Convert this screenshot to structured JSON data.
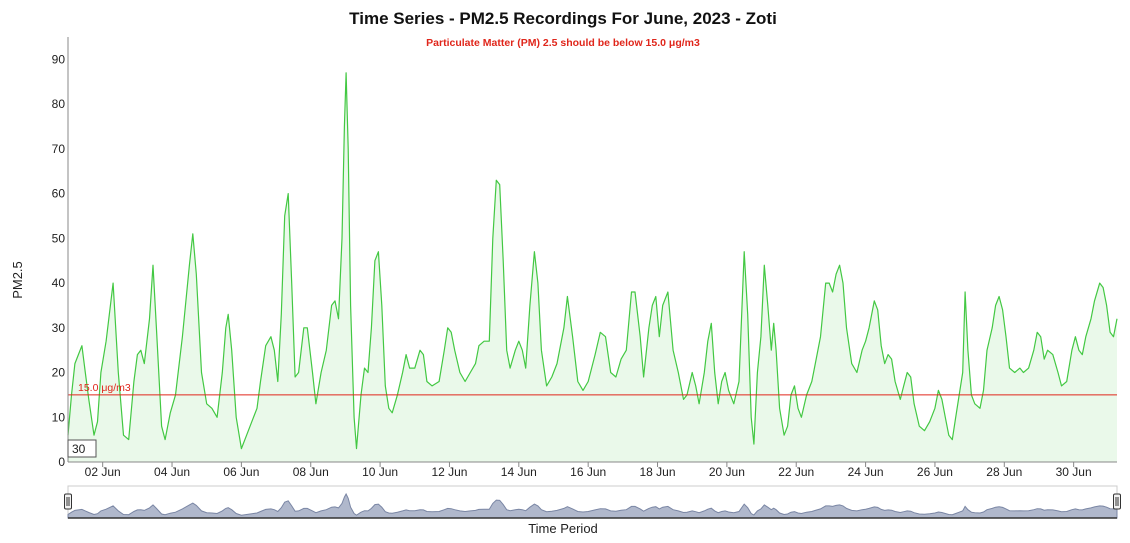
{
  "chart_data": {
    "type": "area",
    "title": "Time Series - PM2.5 Recordings For June, 2023 - Zoti",
    "subtitle": "Particulate Matter (PM) 2.5 should be below 15.0 μg/m3",
    "xlabel": "Time Period",
    "ylabel": "PM2.5",
    "xlim": [
      1.0,
      31.25
    ],
    "ylim": [
      0,
      95
    ],
    "x_ticks": [
      {
        "x": 2,
        "label": "02 Jun"
      },
      {
        "x": 4,
        "label": "04 Jun"
      },
      {
        "x": 6,
        "label": "06 Jun"
      },
      {
        "x": 8,
        "label": "08 Jun"
      },
      {
        "x": 10,
        "label": "10 Jun"
      },
      {
        "x": 12,
        "label": "12 Jun"
      },
      {
        "x": 14,
        "label": "14 Jun"
      },
      {
        "x": 16,
        "label": "16 Jun"
      },
      {
        "x": 18,
        "label": "18 Jun"
      },
      {
        "x": 20,
        "label": "20 Jun"
      },
      {
        "x": 22,
        "label": "22 Jun"
      },
      {
        "x": 24,
        "label": "24 Jun"
      },
      {
        "x": 26,
        "label": "26 Jun"
      },
      {
        "x": 28,
        "label": "28 Jun"
      },
      {
        "x": 30,
        "label": "30 Jun"
      }
    ],
    "y_ticks": [
      0,
      10,
      20,
      30,
      40,
      50,
      60,
      70,
      80,
      90
    ],
    "threshold": {
      "value": 15.0,
      "label": "15.0 μg/m3"
    },
    "grid": false,
    "series": [
      {
        "values": [
          [
            1.0,
            6
          ],
          [
            1.1,
            15
          ],
          [
            1.2,
            22
          ],
          [
            1.3,
            24
          ],
          [
            1.4,
            26
          ],
          [
            1.5,
            20
          ],
          [
            1.6,
            14
          ],
          [
            1.75,
            6
          ],
          [
            1.85,
            9
          ],
          [
            1.95,
            20
          ],
          [
            2.1,
            27
          ],
          [
            2.3,
            40
          ],
          [
            2.45,
            20
          ],
          [
            2.6,
            6
          ],
          [
            2.75,
            5
          ],
          [
            2.9,
            18
          ],
          [
            3.0,
            24
          ],
          [
            3.1,
            25
          ],
          [
            3.2,
            22
          ],
          [
            3.35,
            32
          ],
          [
            3.45,
            44
          ],
          [
            3.55,
            30
          ],
          [
            3.7,
            8
          ],
          [
            3.8,
            5
          ],
          [
            3.95,
            11
          ],
          [
            4.1,
            15
          ],
          [
            4.3,
            28
          ],
          [
            4.5,
            44
          ],
          [
            4.6,
            51
          ],
          [
            4.7,
            42
          ],
          [
            4.85,
            20
          ],
          [
            5.0,
            13
          ],
          [
            5.15,
            12
          ],
          [
            5.3,
            10
          ],
          [
            5.45,
            20
          ],
          [
            5.55,
            30
          ],
          [
            5.62,
            33
          ],
          [
            5.72,
            25
          ],
          [
            5.85,
            10
          ],
          [
            6.0,
            3
          ],
          [
            6.15,
            6
          ],
          [
            6.3,
            9
          ],
          [
            6.45,
            12
          ],
          [
            6.55,
            18
          ],
          [
            6.7,
            26
          ],
          [
            6.85,
            28
          ],
          [
            6.95,
            25
          ],
          [
            7.05,
            18
          ],
          [
            7.15,
            33
          ],
          [
            7.25,
            55
          ],
          [
            7.35,
            60
          ],
          [
            7.45,
            40
          ],
          [
            7.55,
            19
          ],
          [
            7.65,
            20
          ],
          [
            7.8,
            30
          ],
          [
            7.9,
            30
          ],
          [
            8.05,
            20
          ],
          [
            8.15,
            13
          ],
          [
            8.3,
            20
          ],
          [
            8.45,
            25
          ],
          [
            8.6,
            35
          ],
          [
            8.7,
            36
          ],
          [
            8.8,
            32
          ],
          [
            8.9,
            50
          ],
          [
            8.97,
            75
          ],
          [
            9.02,
            87
          ],
          [
            9.08,
            70
          ],
          [
            9.15,
            35
          ],
          [
            9.25,
            10
          ],
          [
            9.32,
            3
          ],
          [
            9.45,
            15
          ],
          [
            9.55,
            21
          ],
          [
            9.65,
            20
          ],
          [
            9.75,
            30
          ],
          [
            9.85,
            45
          ],
          [
            9.95,
            47
          ],
          [
            10.05,
            35
          ],
          [
            10.15,
            17
          ],
          [
            10.25,
            12
          ],
          [
            10.35,
            11
          ],
          [
            10.5,
            15
          ],
          [
            10.65,
            20
          ],
          [
            10.75,
            24
          ],
          [
            10.85,
            21
          ],
          [
            11.0,
            21
          ],
          [
            11.15,
            25
          ],
          [
            11.25,
            24
          ],
          [
            11.35,
            18
          ],
          [
            11.5,
            17
          ],
          [
            11.7,
            18
          ],
          [
            11.85,
            25
          ],
          [
            11.95,
            30
          ],
          [
            12.05,
            29
          ],
          [
            12.15,
            25
          ],
          [
            12.3,
            20
          ],
          [
            12.45,
            18
          ],
          [
            12.6,
            20
          ],
          [
            12.75,
            22
          ],
          [
            12.85,
            26
          ],
          [
            13.0,
            27
          ],
          [
            13.15,
            27
          ],
          [
            13.25,
            50
          ],
          [
            13.35,
            63
          ],
          [
            13.45,
            62
          ],
          [
            13.55,
            45
          ],
          [
            13.65,
            25
          ],
          [
            13.75,
            21
          ],
          [
            13.9,
            25
          ],
          [
            14.0,
            27
          ],
          [
            14.1,
            25
          ],
          [
            14.2,
            21
          ],
          [
            14.32,
            35
          ],
          [
            14.45,
            47
          ],
          [
            14.55,
            40
          ],
          [
            14.65,
            25
          ],
          [
            14.8,
            17
          ],
          [
            14.95,
            19
          ],
          [
            15.1,
            22
          ],
          [
            15.3,
            30
          ],
          [
            15.4,
            37
          ],
          [
            15.55,
            28
          ],
          [
            15.7,
            18
          ],
          [
            15.85,
            16
          ],
          [
            16.0,
            18
          ],
          [
            16.2,
            24
          ],
          [
            16.35,
            29
          ],
          [
            16.5,
            28
          ],
          [
            16.65,
            20
          ],
          [
            16.8,
            19
          ],
          [
            16.95,
            23
          ],
          [
            17.1,
            25
          ],
          [
            17.25,
            38
          ],
          [
            17.35,
            38
          ],
          [
            17.5,
            28
          ],
          [
            17.6,
            19
          ],
          [
            17.75,
            30
          ],
          [
            17.85,
            35
          ],
          [
            17.95,
            37
          ],
          [
            18.05,
            28
          ],
          [
            18.15,
            35
          ],
          [
            18.3,
            38
          ],
          [
            18.45,
            25
          ],
          [
            18.6,
            20
          ],
          [
            18.75,
            14
          ],
          [
            18.85,
            15
          ],
          [
            19.0,
            20
          ],
          [
            19.1,
            17
          ],
          [
            19.2,
            13
          ],
          [
            19.35,
            20
          ],
          [
            19.45,
            27
          ],
          [
            19.55,
            31
          ],
          [
            19.65,
            20
          ],
          [
            19.75,
            13
          ],
          [
            19.85,
            18
          ],
          [
            19.95,
            20
          ],
          [
            20.05,
            16
          ],
          [
            20.2,
            13
          ],
          [
            20.35,
            18
          ],
          [
            20.5,
            47
          ],
          [
            20.6,
            33
          ],
          [
            20.7,
            10
          ],
          [
            20.78,
            4
          ],
          [
            20.88,
            20
          ],
          [
            20.98,
            28
          ],
          [
            21.08,
            44
          ],
          [
            21.18,
            35
          ],
          [
            21.28,
            25
          ],
          [
            21.35,
            31
          ],
          [
            21.42,
            25
          ],
          [
            21.52,
            12
          ],
          [
            21.65,
            6
          ],
          [
            21.75,
            8
          ],
          [
            21.85,
            15
          ],
          [
            21.95,
            17
          ],
          [
            22.05,
            12
          ],
          [
            22.15,
            10
          ],
          [
            22.3,
            15
          ],
          [
            22.45,
            18
          ],
          [
            22.55,
            22
          ],
          [
            22.7,
            28
          ],
          [
            22.85,
            40
          ],
          [
            22.95,
            40
          ],
          [
            23.05,
            38
          ],
          [
            23.15,
            42
          ],
          [
            23.25,
            44
          ],
          [
            23.35,
            40
          ],
          [
            23.45,
            30
          ],
          [
            23.6,
            22
          ],
          [
            23.75,
            20
          ],
          [
            23.9,
            25
          ],
          [
            24.0,
            27
          ],
          [
            24.1,
            30
          ],
          [
            24.25,
            36
          ],
          [
            24.35,
            34
          ],
          [
            24.45,
            26
          ],
          [
            24.55,
            22
          ],
          [
            24.65,
            24
          ],
          [
            24.75,
            23
          ],
          [
            24.85,
            18
          ],
          [
            25.0,
            14
          ],
          [
            25.1,
            17
          ],
          [
            25.2,
            20
          ],
          [
            25.3,
            19
          ],
          [
            25.4,
            13
          ],
          [
            25.55,
            8
          ],
          [
            25.7,
            7
          ],
          [
            25.85,
            9
          ],
          [
            26.0,
            12
          ],
          [
            26.1,
            16
          ],
          [
            26.2,
            14
          ],
          [
            26.3,
            10
          ],
          [
            26.4,
            6
          ],
          [
            26.5,
            5
          ],
          [
            26.6,
            10
          ],
          [
            26.7,
            15
          ],
          [
            26.8,
            20
          ],
          [
            26.87,
            38
          ],
          [
            26.95,
            25
          ],
          [
            27.05,
            15
          ],
          [
            27.15,
            13
          ],
          [
            27.3,
            12
          ],
          [
            27.4,
            16
          ],
          [
            27.5,
            25
          ],
          [
            27.65,
            30
          ],
          [
            27.75,
            35
          ],
          [
            27.85,
            37
          ],
          [
            27.95,
            34
          ],
          [
            28.05,
            28
          ],
          [
            28.15,
            21
          ],
          [
            28.3,
            20
          ],
          [
            28.45,
            21
          ],
          [
            28.55,
            20
          ],
          [
            28.7,
            21
          ],
          [
            28.85,
            25
          ],
          [
            28.95,
            29
          ],
          [
            29.05,
            28
          ],
          [
            29.15,
            23
          ],
          [
            29.25,
            25
          ],
          [
            29.4,
            24
          ],
          [
            29.55,
            20
          ],
          [
            29.65,
            17
          ],
          [
            29.8,
            18
          ],
          [
            29.95,
            25
          ],
          [
            30.05,
            28
          ],
          [
            30.15,
            25
          ],
          [
            30.25,
            24
          ],
          [
            30.35,
            28
          ],
          [
            30.5,
            32
          ],
          [
            30.6,
            36
          ],
          [
            30.75,
            40
          ],
          [
            30.85,
            39
          ],
          [
            30.95,
            35
          ],
          [
            31.05,
            29
          ],
          [
            31.15,
            28
          ],
          [
            31.25,
            32
          ]
        ]
      }
    ],
    "colors": {
      "line": "#43c843",
      "fill": "#eaf9ea",
      "threshold": "#e0261b",
      "subtitle": "#e0261b",
      "navigator_fill": "#b0b8cc",
      "navigator_line": "#7a86a4"
    },
    "range_selector_value": "30"
  }
}
